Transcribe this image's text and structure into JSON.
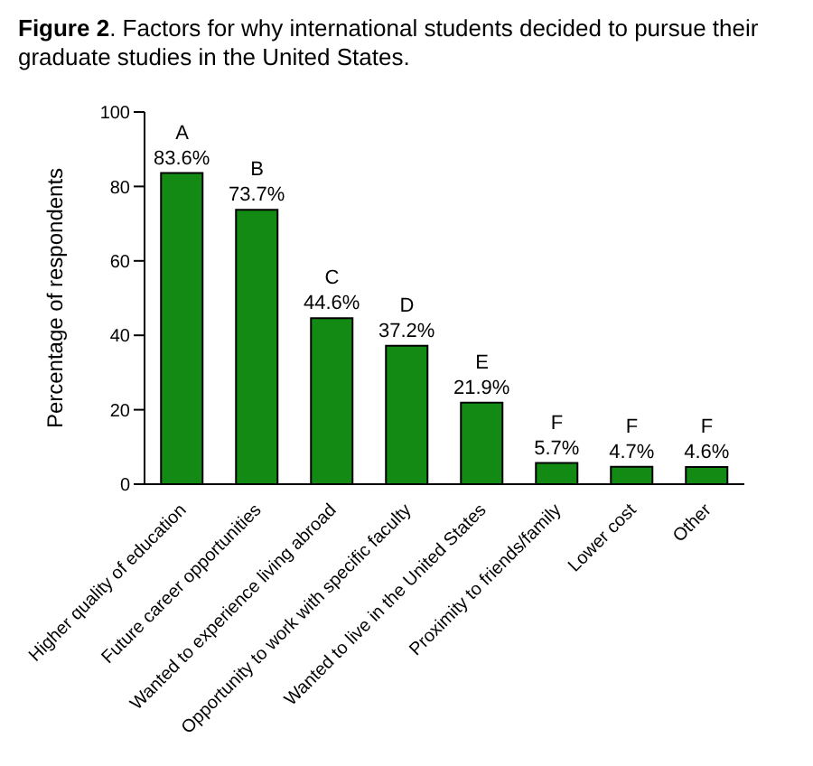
{
  "chart_data": {
    "type": "bar",
    "title": "Figure 2. Factors for why international students decided to pursue their graduate studies in the United States.",
    "ylabel": "Percentage of respondents",
    "categories": [
      "Higher quality of education",
      "Future career opportunities",
      "Wanted to experience living abroad",
      "Opportunity to work with specific faculty",
      "Wanted to live in the United States",
      "Proximity to friends/family",
      "Lower cost",
      "Other"
    ],
    "values": [
      83.6,
      73.7,
      44.6,
      37.2,
      21.9,
      5.7,
      4.7,
      4.6
    ],
    "value_labels": [
      "83.6%",
      "73.7%",
      "44.6%",
      "37.2%",
      "21.9%",
      "5.7%",
      "4.7%",
      "4.6%"
    ],
    "color": "#138a13",
    "ylim": [
      0,
      100
    ],
    "yticks": [
      0,
      20,
      40,
      60,
      80,
      100
    ],
    "grid": false,
    "legend": false,
    "annotations": [
      {
        "text": "A",
        "x": "Higher quality of education",
        "y": 83.6
      },
      {
        "text": "B",
        "x": "Future career opportunities",
        "y": 73.7
      },
      {
        "text": "C",
        "x": "Wanted to experience living abroad",
        "y": 44.6
      },
      {
        "text": "D",
        "x": "Opportunity to work with specific faculty",
        "y": 37.2
      },
      {
        "text": "E",
        "x": "Wanted to live in the United States",
        "y": 21.9
      },
      {
        "text": "F",
        "x": "Proximity to friends/family",
        "y": 5.7
      },
      {
        "text": "F",
        "x": "Lower cost",
        "y": 4.7
      },
      {
        "text": "F",
        "x": "Other",
        "y": 4.6
      }
    ]
  }
}
